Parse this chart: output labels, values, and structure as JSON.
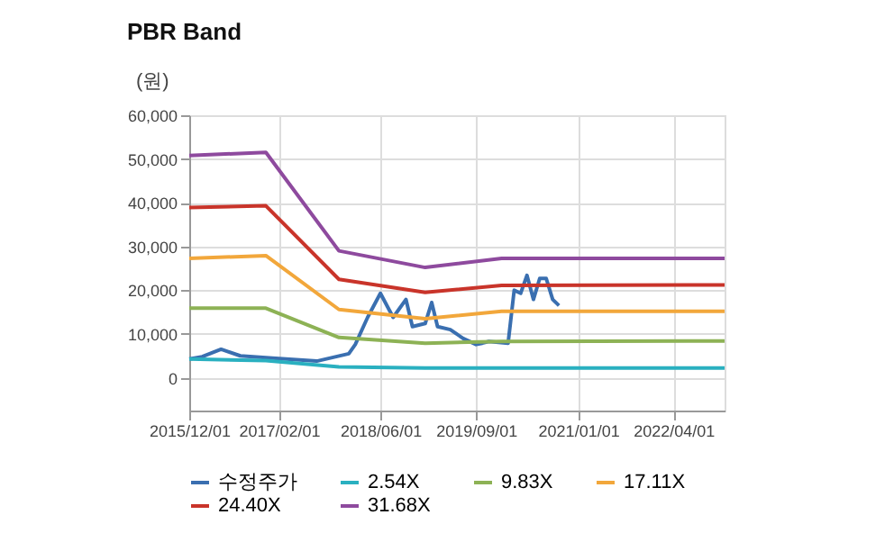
{
  "chart_data": {
    "type": "line",
    "title": "PBR Band",
    "ylabel": "(원)",
    "x": [
      "2015-12-01",
      "2016-12-01",
      "2017-11-15",
      "2019-01-01",
      "2020-01-01",
      "2022-12-01"
    ],
    "xlim": [
      "2015-12-01",
      "2022-12-01"
    ],
    "xticks": [
      {
        "value": "2015-12-01",
        "label": "2015/12/01"
      },
      {
        "value": "2017-02-01",
        "label": "2017/02/01"
      },
      {
        "value": "2018-06-01",
        "label": "2018/06/01"
      },
      {
        "value": "2019-09-01",
        "label": "2019/09/01"
      },
      {
        "value": "2021-01-01",
        "label": "2021/01/01"
      },
      {
        "value": "2022-04-01",
        "label": "2022/04/01"
      }
    ],
    "ylim": [
      -7500,
      60000
    ],
    "yticks": [
      0,
      {
        "value": 10000,
        "label": "10,000"
      },
      {
        "value": 20000,
        "label": "20,000"
      },
      {
        "value": 30000,
        "label": "30,000"
      },
      {
        "value": 40000,
        "label": "40,000"
      },
      {
        "value": 50000,
        "label": "50,000"
      },
      {
        "value": 60000,
        "label": "60,000"
      }
    ],
    "grid": true,
    "legend": "bottom",
    "marker": "none",
    "line_style": "solid",
    "series": [
      {
        "name": "수정주가",
        "color": "#3a6fb0",
        "x": [
          "2015-12-01",
          "2016-02-01",
          "2016-05-01",
          "2016-08-01",
          "2017-01-01",
          "2017-08-01",
          "2018-01-01",
          "2018-02-01",
          "2018-04-01",
          "2018-06-01",
          "2018-08-01",
          "2018-10-01",
          "2018-11-01",
          "2019-01-01",
          "2019-02-01",
          "2019-03-01",
          "2019-05-01",
          "2019-07-01",
          "2019-09-01",
          "2019-10-01",
          "2019-11-01",
          "2020-02-01",
          "2020-03-01",
          "2020-04-01",
          "2020-05-01",
          "2020-06-01",
          "2020-07-01",
          "2020-08-01",
          "2020-09-01",
          "2020-10-01"
        ],
        "values": [
          4300,
          4800,
          6500,
          5000,
          4500,
          3800,
          5500,
          7600,
          13800,
          19300,
          13800,
          17900,
          11700,
          12400,
          17200,
          11700,
          11000,
          9000,
          7600,
          7900,
          8300,
          7900,
          20000,
          19300,
          23400,
          17900,
          22700,
          22700,
          17900,
          16500
        ]
      },
      {
        "name": "2.54X",
        "color": "#2ab0c0",
        "values": [
          4300,
          3900,
          2500,
          2200,
          2200,
          2200
        ]
      },
      {
        "name": "9.83X",
        "color": "#8db255",
        "values": [
          15900,
          15900,
          9200,
          7900,
          8300,
          8400
        ]
      },
      {
        "name": "17.11X",
        "color": "#f2a73b",
        "values": [
          27300,
          27900,
          15600,
          13500,
          15200,
          15200
        ]
      },
      {
        "name": "24.40X",
        "color": "#c9342a",
        "values": [
          38900,
          39300,
          22500,
          19500,
          21100,
          21200
        ]
      },
      {
        "name": "31.68X",
        "color": "#8e4a9e",
        "values": [
          50800,
          51500,
          29000,
          25200,
          27300,
          27300
        ]
      }
    ]
  }
}
